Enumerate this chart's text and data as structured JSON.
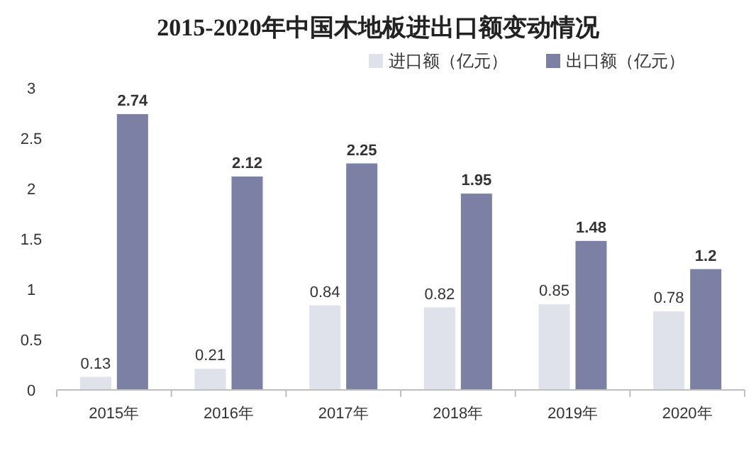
{
  "chart_data": {
    "type": "bar",
    "title": "2015-2020年中国木地板进出口额变动情况",
    "categories": [
      "2015年",
      "2016年",
      "2017年",
      "2018年",
      "2019年",
      "2020年"
    ],
    "series": [
      {
        "name": "进口额（亿元）",
        "color": "#dfe2eb",
        "values": [
          0.13,
          0.21,
          0.84,
          0.82,
          0.85,
          0.78
        ]
      },
      {
        "name": "出口额（亿元）",
        "color": "#7b80a4",
        "values": [
          2.74,
          2.12,
          2.25,
          1.95,
          1.48,
          1.2
        ]
      }
    ],
    "ylim": [
      0,
      3
    ],
    "yticks": [
      0,
      0.5,
      1,
      1.5,
      2,
      2.5,
      3
    ],
    "data_labels": true,
    "legend": "top right",
    "grid": false
  }
}
